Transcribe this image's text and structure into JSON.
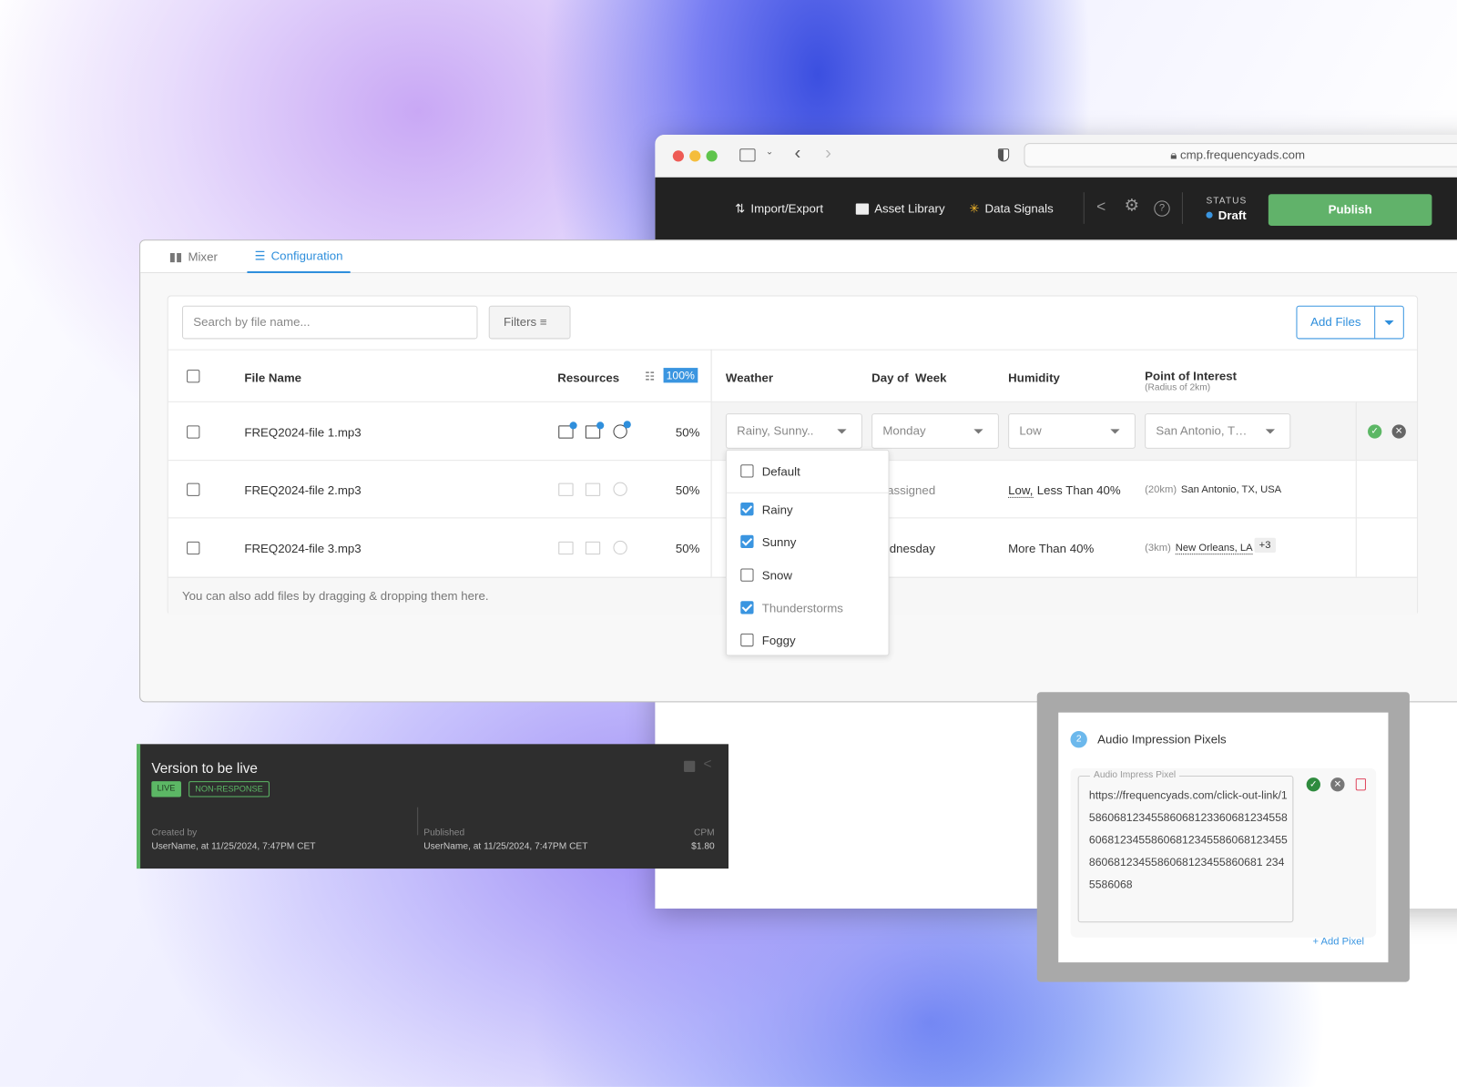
{
  "browser": {
    "url": "cmp.frequencyads.com"
  },
  "appbar": {
    "nav": [
      {
        "label": "Import/Export",
        "icon": "import-export-icon"
      },
      {
        "label": "Asset Library",
        "icon": "asset-library-icon"
      },
      {
        "label": "Data Signals",
        "icon": "data-signals-icon"
      }
    ],
    "status_label": "STATUS",
    "status_value": "Draft",
    "status_color": "#3a95e0",
    "publish_label": "Publish",
    "publish_color": "#61b26a"
  },
  "tabs": [
    {
      "label": "Mixer",
      "icon": "bar-chart-icon"
    },
    {
      "label": "Configuration",
      "icon": "list-check-icon",
      "active": true
    }
  ],
  "toolbar": {
    "search_placeholder": "Search by file name...",
    "filters_label": "Filters",
    "add_files_label": "Add Files"
  },
  "table": {
    "headers": {
      "file_name": "File Name",
      "resources": "Resources",
      "total_percent": "100%",
      "weather": "Weather",
      "day": "Day of  Week",
      "humidity": "Humidity",
      "poi": "Point of Interest",
      "poi_sub": "(Radius of 2km)"
    },
    "rows": [
      {
        "file": "FREQ2024-file 1.mp3",
        "percent": "50%",
        "weather": "Rainy, Sunny..",
        "day": "Monday",
        "humidity": "Low",
        "poi": "San Antonio, T…",
        "resources_active": true,
        "editing": true
      },
      {
        "file": "FREQ2024-file 2.mp3",
        "percent": "50%",
        "day": "Unassigned",
        "humidity_under": "Low,",
        "humidity": "Less Than 40%",
        "poi_radius": "(20km)",
        "poi": "San Antonio, TX, USA",
        "resources_active": false
      },
      {
        "file": "FREQ2024-file 3.mp3",
        "percent": "50%",
        "day": "Wednesday",
        "humidity": "More Than 40%",
        "poi_radius": "(3km)",
        "poi": "New Orleans, LA",
        "poi_more": "+3",
        "resources_active": false
      }
    ],
    "footer": "You can also add files by dragging & dropping them here."
  },
  "weather_dropdown": {
    "options": [
      {
        "label": "Default",
        "checked": false
      },
      {
        "label": "Rainy",
        "checked": true
      },
      {
        "label": "Sunny",
        "checked": true
      },
      {
        "label": "Snow",
        "checked": false
      },
      {
        "label": "Thunderstorms",
        "checked": true
      },
      {
        "label": "Foggy",
        "checked": false
      }
    ]
  },
  "version": {
    "title": "Version to be live",
    "tags": [
      "LIVE",
      "NON-RESPONSE"
    ],
    "created_label": "Created by",
    "created_value": "UserName, at 11/25/2024, 7:47PM CET",
    "published_label": "Published",
    "published_value": "UserName, at 11/25/2024, 7:47PM CET",
    "cpm_label": "CPM",
    "cpm_value": "$1.80"
  },
  "pixels": {
    "step": "2",
    "title": "Audio Impression Pixels",
    "field_label": "Audio Impress Pixel",
    "value": "https://frequencyads.com/click-out-link/158606812345586068123360681234558606812345586068123455860681234558606812345586068123455860681 2345586068",
    "add_label": "+ Add Pixel"
  }
}
